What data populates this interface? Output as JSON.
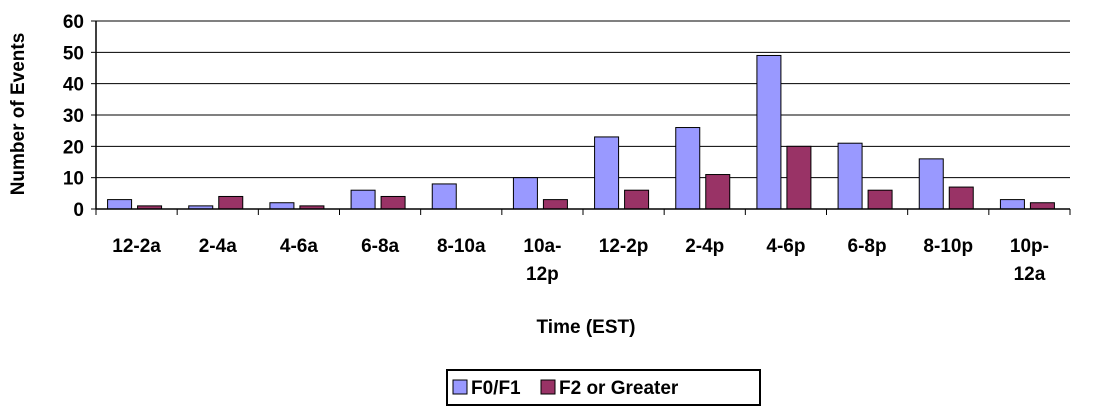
{
  "chart_data": {
    "type": "bar",
    "title": "",
    "xlabel": "Time (EST)",
    "ylabel": "Number of Events",
    "ylim": [
      0,
      60
    ],
    "yticks": [
      0,
      10,
      20,
      30,
      40,
      50,
      60
    ],
    "grid": true,
    "legend_position": "bottom-center",
    "categories": [
      [
        "12-2a"
      ],
      [
        "2-4a"
      ],
      [
        "4-6a"
      ],
      [
        "6-8a"
      ],
      [
        "8-10a"
      ],
      [
        "10a-",
        "12p"
      ],
      [
        "12-2p"
      ],
      [
        "2-4p"
      ],
      [
        "4-6p"
      ],
      [
        "6-8p"
      ],
      [
        "8-10p"
      ],
      [
        "10p-",
        "12a"
      ]
    ],
    "series": [
      {
        "name": "F0/F1",
        "color": "#9999FF",
        "values": [
          3,
          1,
          2,
          6,
          8,
          10,
          23,
          26,
          49,
          21,
          16,
          3
        ]
      },
      {
        "name": "F2 or Greater",
        "color": "#993366",
        "values": [
          1,
          4,
          1,
          4,
          0,
          3,
          6,
          11,
          20,
          6,
          7,
          2
        ]
      }
    ]
  }
}
